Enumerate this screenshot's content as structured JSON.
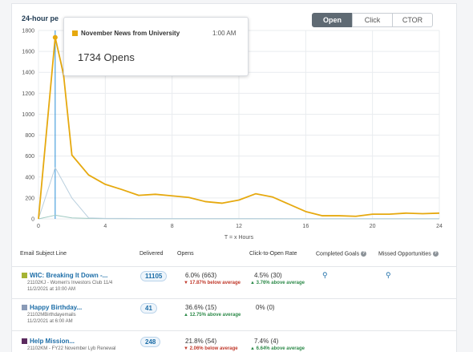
{
  "header": {
    "title": "24-hour pe",
    "toggles": [
      "Open",
      "Click",
      "CTOR"
    ],
    "active_toggle": "Open"
  },
  "tooltip": {
    "series_name": "November News from University",
    "time": "1:00 AM",
    "value_text": "1734 Opens",
    "swatch_color": "#e6a90f"
  },
  "chart_data": {
    "type": "line",
    "xlabel": "T = x Hours",
    "ylabel": "",
    "xlim": [
      0,
      24
    ],
    "ylim": [
      0,
      1800
    ],
    "x_ticks": [
      0,
      4,
      8,
      12,
      16,
      20,
      24
    ],
    "y_ticks": [
      0,
      200,
      400,
      600,
      800,
      1000,
      1200,
      1400,
      1600,
      1800
    ],
    "grid": true,
    "highlight_x": 1,
    "series": [
      {
        "name": "November News from University",
        "color": "#e6a90f",
        "x": [
          0,
          1,
          1.5,
          2,
          3,
          4,
          5,
          6,
          7,
          8,
          9,
          10,
          11,
          12,
          13,
          14,
          15,
          16,
          17,
          18,
          19,
          20,
          21,
          22,
          23,
          24
        ],
        "y": [
          0,
          1734,
          1380,
          610,
          420,
          330,
          280,
          225,
          235,
          220,
          205,
          165,
          150,
          180,
          240,
          210,
          140,
          70,
          30,
          30,
          25,
          45,
          45,
          55,
          50,
          55
        ]
      },
      {
        "color": "#b9cfde",
        "x": [
          0,
          1,
          2,
          3,
          4,
          5,
          6,
          8,
          10,
          12,
          16,
          20,
          24
        ],
        "y": [
          0,
          490,
          200,
          10,
          5,
          5,
          4,
          3,
          3,
          3,
          2,
          2,
          2
        ]
      },
      {
        "color": "#9fc9c2",
        "x": [
          0,
          1,
          2,
          3,
          4,
          6,
          8,
          12,
          16,
          20,
          24
        ],
        "y": [
          0,
          35,
          10,
          5,
          3,
          2,
          2,
          2,
          1,
          1,
          1
        ]
      }
    ]
  },
  "table": {
    "headers": {
      "subject": "Email Subject Line",
      "delivered": "Delivered",
      "opens": "Opens",
      "ctor": "Click-to-Open Rate",
      "goals": "Completed Goals",
      "missed": "Missed Opportunities"
    },
    "rows": [
      {
        "color": "#a5b334",
        "title": "WIC: Breaking It Down -...",
        "sub1": "21102KJ - Women's Investors Club 11/4",
        "sub2": "11/2/2021 at 10:00 AM",
        "delivered": "11105",
        "opens": "6.0% (663)",
        "opens_trend": "▼ 17.87% below average",
        "opens_dir": "down",
        "ctor": "4.5% (30)",
        "ctor_trend": "▲ 3.76% above average",
        "ctor_dir": "up",
        "show_goals": true
      },
      {
        "color": "#8a9bb7",
        "title": "Happy Birthday...",
        "sub1": "21102MBirthdayemails",
        "sub2": "11/2/2021 at 6:00 AM",
        "delivered": "41",
        "opens": "36.6% (15)",
        "opens_trend": "▲ 12.75% above average",
        "opens_dir": "up",
        "ctor": "0% (0)",
        "ctor_trend": "",
        "ctor_dir": "",
        "show_goals": false
      },
      {
        "color": "#5b2a5e",
        "title": "Help         Mission...",
        "sub1": "21102KM - FY22 November Lyb Renewal",
        "sub2": "",
        "delivered": "248",
        "opens": "21.8% (54)",
        "opens_trend": "▼ 2.06% below average",
        "opens_dir": "down",
        "ctor": "7.4% (4)",
        "ctor_trend": "▲ 6.64% above average",
        "ctor_dir": "up",
        "show_goals": false
      }
    ]
  }
}
